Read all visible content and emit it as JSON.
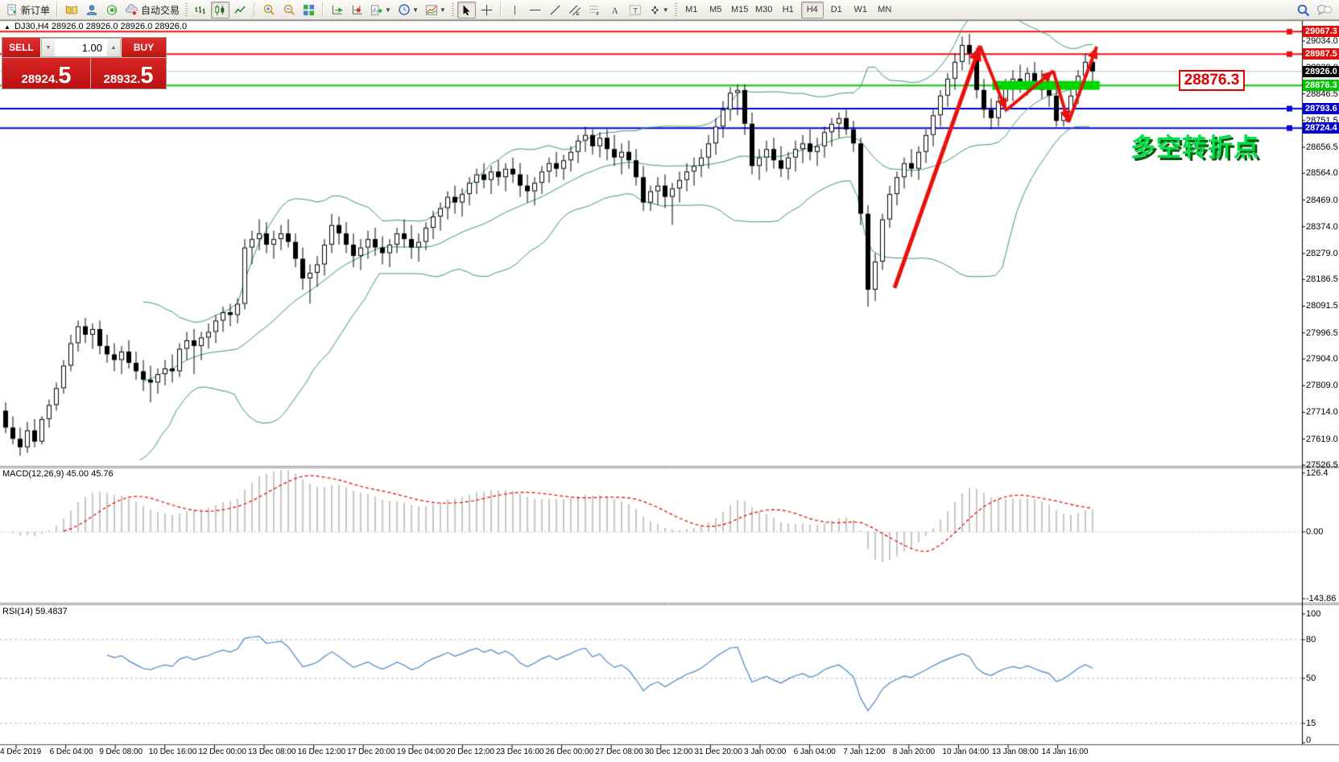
{
  "toolbar": {
    "new_order_label": "新订单",
    "autotrading_label": "自动交易",
    "timeframes": [
      "M1",
      "M5",
      "M15",
      "M30",
      "H1",
      "H4",
      "D1",
      "W1",
      "MN"
    ],
    "active_timeframe": "H4"
  },
  "trade_panel": {
    "sell_label": "SELL",
    "buy_label": "BUY",
    "volume": "1.00",
    "sell_price_main": "28924.",
    "sell_price_big": "5",
    "buy_price_main": "28932.",
    "buy_price_big": "5"
  },
  "chart": {
    "title": "DJ30,H4  28926.0 28926.0 28926.0 28926.0",
    "expand_marker": "▲"
  },
  "annotations": {
    "turning_point_text": "多空转折点",
    "price_box_label": "28876.3"
  },
  "chart_data": {
    "type": "candlestick",
    "symbol": "DJ30",
    "timeframe": "H4",
    "view_price_top": 29034.0,
    "view_price_bottom": 27526.5,
    "price_ticks": [
      29034.0,
      28939.0,
      28846.5,
      28751.5,
      28656.5,
      28564.0,
      28469.0,
      28374.0,
      28279.0,
      28186.5,
      28091.5,
      27996.5,
      27904.0,
      27809.0,
      27714.0,
      27619.0,
      27526.5
    ],
    "price_badges": [
      {
        "value": "29067.3",
        "price": 29067.3,
        "color": "#dc1010"
      },
      {
        "value": "28987.5",
        "price": 28987.5,
        "color": "#dc1010"
      },
      {
        "value": "28926.0",
        "price": 28926.0,
        "color": "#000000"
      },
      {
        "value": "28876.3",
        "price": 28876.3,
        "color": "#00c400"
      },
      {
        "value": "28793.6",
        "price": 28793.6,
        "color": "#0000c8"
      },
      {
        "value": "28724.4",
        "price": 28724.4,
        "color": "#0000c8"
      }
    ],
    "hlines": [
      {
        "price": 29067.3,
        "color": "#ee1111",
        "width": 2,
        "handle": true
      },
      {
        "price": 28987.5,
        "color": "#ee1111",
        "width": 2,
        "handle": true
      },
      {
        "price": 28926.0,
        "color": "#c0c0c0",
        "width": 1,
        "handle": false
      },
      {
        "price": 28876.3,
        "color": "#00cc00",
        "width": 2,
        "handle": false
      },
      {
        "price": 28793.6,
        "color": "#0000dd",
        "width": 2,
        "handle": true
      },
      {
        "price": 28724.4,
        "color": "#0000dd",
        "width": 2,
        "handle": true
      }
    ],
    "support_zone": {
      "price": 28876.3,
      "from_candle": 136.5,
      "to_candle": 151.3,
      "color": "#00d500"
    },
    "trend_arrows": [
      {
        "from": [
          123,
          28156
        ],
        "to": [
          134.8,
          29017
        ],
        "width": 5
      },
      {
        "from": [
          134.8,
          29017
        ],
        "to": [
          138.4,
          28788
        ],
        "width": 4
      },
      {
        "from": [
          138.4,
          28788
        ],
        "to": [
          144.9,
          28928
        ],
        "width": 4
      },
      {
        "from": [
          144.9,
          28928
        ],
        "to": [
          147,
          28745
        ],
        "width": 4
      },
      {
        "from": [
          147,
          28745
        ],
        "to": [
          150.9,
          29014
        ],
        "width": 4
      }
    ],
    "arrow_color": "#e8100c",
    "time_labels": [
      "4 Dec 2019",
      "6 Dec 04:00",
      "9 Dec 08:00",
      "10 Dec 16:00",
      "12 Dec 00:00",
      "13 Dec 08:00",
      "16 Dec 12:00",
      "17 Dec 20:00",
      "19 Dec 04:00",
      "20 Dec 12:00",
      "23 Dec 16:00",
      "26 Dec 00:00",
      "27 Dec 08:00",
      "30 Dec 12:00",
      "31 Dec 20:00",
      "3 Jan 00:00",
      "6 Jan 04:00",
      "7 Jan 12:00",
      "8 Jan 20:00",
      "10 Jan 04:00",
      "13 Jan 08:00",
      "14 Jan 16:00"
    ],
    "indicators": {
      "bollinger": {
        "period": 20,
        "deviation": 2,
        "color": "#3a9a6e"
      },
      "macd": {
        "label": "MACD(12,26,9)",
        "value_main": "45.00",
        "value_signal": "45.76",
        "scale": [
          "126.4",
          "0.00",
          "-143.86"
        ],
        "scale_max": 126.4,
        "scale_min": -143.86,
        "histogram_color": "#b4b4b4",
        "signal_color": "#e00000"
      },
      "rsi": {
        "label": "RSI(14)",
        "value": "59.4837",
        "scale": [
          "100",
          "80",
          "50",
          "15",
          "0"
        ],
        "levels": [
          80,
          50,
          15
        ],
        "line_color": "#4a86c8",
        "level_color": "#b8b8b8"
      }
    },
    "ohlc": [
      [
        27720,
        27750,
        27640,
        27660
      ],
      [
        27660,
        27700,
        27600,
        27620
      ],
      [
        27620,
        27660,
        27560,
        27590
      ],
      [
        27590,
        27680,
        27570,
        27650
      ],
      [
        27650,
        27690,
        27590,
        27610
      ],
      [
        27610,
        27700,
        27600,
        27690
      ],
      [
        27690,
        27760,
        27660,
        27740
      ],
      [
        27740,
        27820,
        27720,
        27800
      ],
      [
        27800,
        27900,
        27780,
        27880
      ],
      [
        27880,
        27990,
        27860,
        27960
      ],
      [
        27960,
        28040,
        27930,
        28020
      ],
      [
        28020,
        28050,
        27960,
        27990
      ],
      [
        27990,
        28030,
        27940,
        28010
      ],
      [
        28010,
        28040,
        27920,
        27950
      ],
      [
        27950,
        27990,
        27890,
        27920
      ],
      [
        27920,
        27960,
        27860,
        27900
      ],
      [
        27900,
        27950,
        27850,
        27930
      ],
      [
        27930,
        27970,
        27870,
        27890
      ],
      [
        27890,
        27930,
        27830,
        27860
      ],
      [
        27860,
        27900,
        27790,
        27830
      ],
      [
        27830,
        27880,
        27750,
        27820
      ],
      [
        27820,
        27870,
        27780,
        27850
      ],
      [
        27850,
        27900,
        27810,
        27870
      ],
      [
        27870,
        27920,
        27820,
        27860
      ],
      [
        27860,
        27960,
        27840,
        27940
      ],
      [
        27940,
        28000,
        27900,
        27970
      ],
      [
        27970,
        28010,
        27850,
        27950
      ],
      [
        27950,
        28000,
        27900,
        27980
      ],
      [
        27980,
        28030,
        27940,
        28000
      ],
      [
        28000,
        28060,
        27960,
        28040
      ],
      [
        28040,
        28090,
        28000,
        28070
      ],
      [
        28070,
        28100,
        28020,
        28060
      ],
      [
        28060,
        28120,
        28030,
        28100
      ],
      [
        28100,
        28330,
        28080,
        28300
      ],
      [
        28300,
        28360,
        28240,
        28330
      ],
      [
        28330,
        28400,
        28290,
        28350
      ],
      [
        28350,
        28390,
        28280,
        28310
      ],
      [
        28310,
        28360,
        28260,
        28330
      ],
      [
        28330,
        28380,
        28290,
        28350
      ],
      [
        28350,
        28400,
        28300,
        28320
      ],
      [
        28320,
        28350,
        28230,
        28260
      ],
      [
        28260,
        28300,
        28150,
        28190
      ],
      [
        28190,
        28240,
        28100,
        28210
      ],
      [
        28210,
        28270,
        28160,
        28240
      ],
      [
        28240,
        28330,
        28200,
        28310
      ],
      [
        28310,
        28420,
        28280,
        28380
      ],
      [
        28380,
        28410,
        28310,
        28350
      ],
      [
        28350,
        28390,
        28280,
        28310
      ],
      [
        28310,
        28350,
        28230,
        28270
      ],
      [
        28270,
        28330,
        28220,
        28300
      ],
      [
        28300,
        28360,
        28260,
        28330
      ],
      [
        28330,
        28370,
        28270,
        28300
      ],
      [
        28300,
        28340,
        28240,
        28280
      ],
      [
        28280,
        28330,
        28230,
        28310
      ],
      [
        28310,
        28370,
        28280,
        28350
      ],
      [
        28350,
        28400,
        28300,
        28330
      ],
      [
        28330,
        28380,
        28260,
        28300
      ],
      [
        28300,
        28350,
        28250,
        28320
      ],
      [
        28320,
        28390,
        28290,
        28370
      ],
      [
        28370,
        28430,
        28330,
        28410
      ],
      [
        28410,
        28460,
        28360,
        28440
      ],
      [
        28440,
        28500,
        28400,
        28480
      ],
      [
        28480,
        28520,
        28420,
        28460
      ],
      [
        28460,
        28510,
        28410,
        28490
      ],
      [
        28490,
        28550,
        28450,
        28530
      ],
      [
        28530,
        28580,
        28490,
        28560
      ],
      [
        28560,
        28600,
        28510,
        28540
      ],
      [
        28540,
        28590,
        28490,
        28570
      ],
      [
        28570,
        28610,
        28520,
        28550
      ],
      [
        28550,
        28600,
        28500,
        28580
      ],
      [
        28580,
        28620,
        28530,
        28560
      ],
      [
        28560,
        28600,
        28480,
        28520
      ],
      [
        28520,
        28560,
        28460,
        28500
      ],
      [
        28500,
        28550,
        28450,
        28530
      ],
      [
        28530,
        28590,
        28490,
        28570
      ],
      [
        28570,
        28620,
        28530,
        28600
      ],
      [
        28600,
        28640,
        28550,
        28580
      ],
      [
        28580,
        28630,
        28540,
        28610
      ],
      [
        28610,
        28660,
        28570,
        28640
      ],
      [
        28640,
        28700,
        28600,
        28680
      ],
      [
        28680,
        28730,
        28640,
        28700
      ],
      [
        28700,
        28720,
        28630,
        28660
      ],
      [
        28660,
        28710,
        28620,
        28690
      ],
      [
        28690,
        28720,
        28610,
        28650
      ],
      [
        28650,
        28700,
        28590,
        28620
      ],
      [
        28620,
        28670,
        28560,
        28640
      ],
      [
        28640,
        28680,
        28580,
        28610
      ],
      [
        28610,
        28650,
        28520,
        28550
      ],
      [
        28550,
        28590,
        28430,
        28460
      ],
      [
        28460,
        28520,
        28430,
        28500
      ],
      [
        28500,
        28550,
        28450,
        28520
      ],
      [
        28520,
        28560,
        28440,
        28480
      ],
      [
        28480,
        28530,
        28380,
        28510
      ],
      [
        28510,
        28570,
        28460,
        28540
      ],
      [
        28540,
        28600,
        28500,
        28570
      ],
      [
        28570,
        28620,
        28520,
        28590
      ],
      [
        28590,
        28650,
        28550,
        28620
      ],
      [
        28620,
        28700,
        28580,
        28670
      ],
      [
        28670,
        28760,
        28630,
        28730
      ],
      [
        28730,
        28820,
        28690,
        28790
      ],
      [
        28790,
        28870,
        28750,
        28850
      ],
      [
        28850,
        28880,
        28770,
        28860
      ],
      [
        28860,
        28880,
        28700,
        28740
      ],
      [
        28740,
        28780,
        28560,
        28590
      ],
      [
        28590,
        28650,
        28540,
        28620
      ],
      [
        28620,
        28680,
        28570,
        28650
      ],
      [
        28650,
        28690,
        28580,
        28610
      ],
      [
        28610,
        28660,
        28550,
        28580
      ],
      [
        28580,
        28640,
        28540,
        28620
      ],
      [
        28620,
        28680,
        28570,
        28650
      ],
      [
        28650,
        28700,
        28600,
        28670
      ],
      [
        28670,
        28720,
        28610,
        28640
      ],
      [
        28640,
        28690,
        28590,
        28660
      ],
      [
        28660,
        28730,
        28620,
        28710
      ],
      [
        28710,
        28760,
        28660,
        28740
      ],
      [
        28740,
        28780,
        28690,
        28760
      ],
      [
        28760,
        28790,
        28700,
        28720
      ],
      [
        28720,
        28750,
        28640,
        28670
      ],
      [
        28670,
        28690,
        28380,
        28420
      ],
      [
        28420,
        28450,
        28090,
        28150
      ],
      [
        28150,
        28280,
        28110,
        28250
      ],
      [
        28250,
        28420,
        28220,
        28400
      ],
      [
        28400,
        28520,
        28370,
        28490
      ],
      [
        28490,
        28570,
        28450,
        28550
      ],
      [
        28550,
        28620,
        28510,
        28600
      ],
      [
        28600,
        28650,
        28550,
        28580
      ],
      [
        28580,
        28660,
        28540,
        28640
      ],
      [
        28640,
        28720,
        28600,
        28700
      ],
      [
        28700,
        28790,
        28660,
        28770
      ],
      [
        28770,
        28860,
        28730,
        28840
      ],
      [
        28840,
        28920,
        28800,
        28900
      ],
      [
        28900,
        28990,
        28860,
        28960
      ],
      [
        28960,
        29050,
        28930,
        29020
      ],
      [
        29020,
        29060,
        28950,
        28990
      ],
      [
        28990,
        29010,
        28830,
        28860
      ],
      [
        28860,
        28900,
        28760,
        28790
      ],
      [
        28790,
        28830,
        28720,
        28760
      ],
      [
        28760,
        28840,
        28730,
        28820
      ],
      [
        28820,
        28900,
        28780,
        28870
      ],
      [
        28870,
        28930,
        28820,
        28900
      ],
      [
        28900,
        28950,
        28850,
        28880
      ],
      [
        28880,
        28940,
        28840,
        28920
      ],
      [
        28920,
        28960,
        28860,
        28890
      ],
      [
        28890,
        28930,
        28830,
        28860
      ],
      [
        28860,
        28910,
        28800,
        28840
      ],
      [
        28840,
        28880,
        28730,
        28750
      ],
      [
        28750,
        28800,
        28730,
        28780
      ],
      [
        28780,
        28860,
        28760,
        28840
      ],
      [
        28840,
        28930,
        28810,
        28910
      ],
      [
        28910,
        28990,
        28880,
        28960
      ],
      [
        28960,
        28980,
        28890,
        28926
      ]
    ]
  }
}
